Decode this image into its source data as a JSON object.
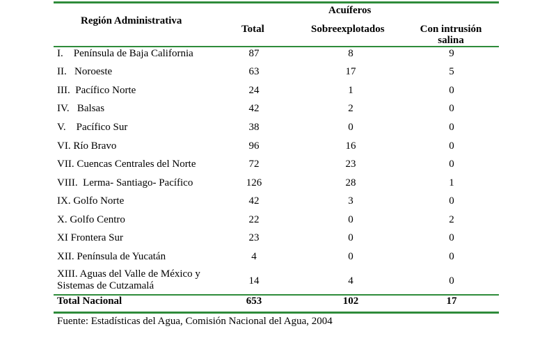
{
  "headers": {
    "region": "Región Administrativa",
    "acuiferos": "Acuíferos",
    "total": "Total",
    "sobre": "Sobreexplotados",
    "intrusion_line1": "Con intrusión",
    "intrusion_line2": "salina"
  },
  "rows": [
    {
      "name": "I.    Península de Baja California",
      "total": "87",
      "sobre": "8",
      "intr": "9"
    },
    {
      "name": "II.   Noroeste",
      "total": "63",
      "sobre": "17",
      "intr": "5"
    },
    {
      "name": "III.  Pacífico Norte",
      "total": "24",
      "sobre": "1",
      "intr": "0"
    },
    {
      "name": "IV.   Balsas",
      "total": "42",
      "sobre": "2",
      "intr": "0"
    },
    {
      "name": "V.    Pacífico Sur",
      "total": "38",
      "sobre": "0",
      "intr": "0"
    },
    {
      "name": "VI. Río Bravo",
      "total": "96",
      "sobre": "16",
      "intr": "0"
    },
    {
      "name": "VII. Cuencas Centrales del Norte",
      "total": "72",
      "sobre": "23",
      "intr": "0"
    },
    {
      "name": "VIII.  Lerma- Santiago- Pacífico",
      "total": "126",
      "sobre": "28",
      "intr": "1"
    },
    {
      "name": "IX. Golfo Norte",
      "total": "42",
      "sobre": "3",
      "intr": "0"
    },
    {
      "name": "X. Golfo Centro",
      "total": "22",
      "sobre": "0",
      "intr": "2"
    },
    {
      "name": "XI Frontera Sur",
      "total": "23",
      "sobre": "0",
      "intr": "0"
    },
    {
      "name": "XII. Península de Yucatán",
      "total": "4",
      "sobre": "0",
      "intr": "0"
    }
  ],
  "last_row": {
    "name_line1": "XIII. Aguas del Valle de México y",
    "name_line2": "Sistemas de Cutzamalá",
    "total": "14",
    "sobre": "4",
    "intr": "0"
  },
  "final": {
    "name": "Total Nacional",
    "total": "653",
    "sobre": "102",
    "intr": "17"
  },
  "source": "Fuente: Estadísticas del Agua, Comisión Nacional del Agua, 2004",
  "colors": {
    "rule": "#2e8b3a"
  }
}
